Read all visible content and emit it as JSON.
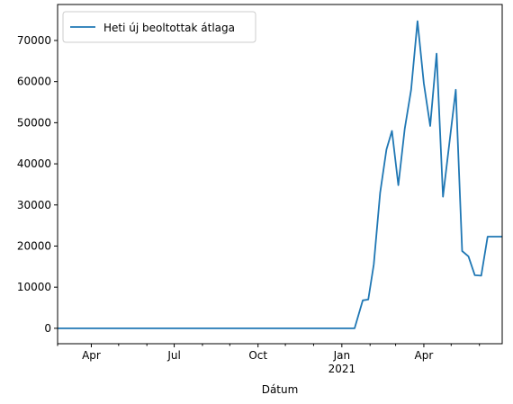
{
  "chart_data": {
    "type": "line",
    "title": "",
    "xlabel": "Dátum",
    "ylabel": "",
    "ylim": [
      -3750,
      78750
    ],
    "xlim_days": [
      -8,
      480
    ],
    "legend": {
      "position": "top-left"
    },
    "grid": false,
    "x_major_ticks": [
      {
        "day": 29,
        "label": "Apr"
      },
      {
        "day": 120,
        "label": "Jul"
      },
      {
        "day": 212,
        "label": "Oct"
      },
      {
        "day": 304,
        "label": "Jan"
      },
      {
        "day": 394,
        "label": "Apr"
      }
    ],
    "x_year_label": {
      "day": 304,
      "label": "2021"
    },
    "x_minor_tick_days": [
      -8,
      59,
      90,
      151,
      181,
      242,
      273,
      335,
      363,
      424,
      455
    ],
    "y_ticks": [
      0,
      10000,
      20000,
      30000,
      40000,
      50000,
      60000,
      70000
    ],
    "y_tick_labels": [
      "0",
      "10000",
      "20000",
      "30000",
      "40000",
      "50000",
      "60000",
      "70000"
    ],
    "series": [
      {
        "name": "Heti új beoltottak átlaga",
        "color": "#1f77b4",
        "days": [
          -8,
          318,
          327,
          333,
          339,
          346,
          353,
          359,
          366,
          373,
          380,
          387,
          394,
          401,
          408,
          415,
          422,
          429,
          436,
          443,
          450,
          457,
          464,
          471,
          476,
          480
        ],
        "values": [
          0,
          0,
          6800,
          7000,
          15500,
          33000,
          43500,
          48000,
          34800,
          48500,
          58000,
          74700,
          59600,
          49200,
          66800,
          32000,
          45000,
          58000,
          18800,
          17500,
          12900,
          12800,
          22300,
          22300,
          22300,
          22300
        ]
      }
    ]
  }
}
